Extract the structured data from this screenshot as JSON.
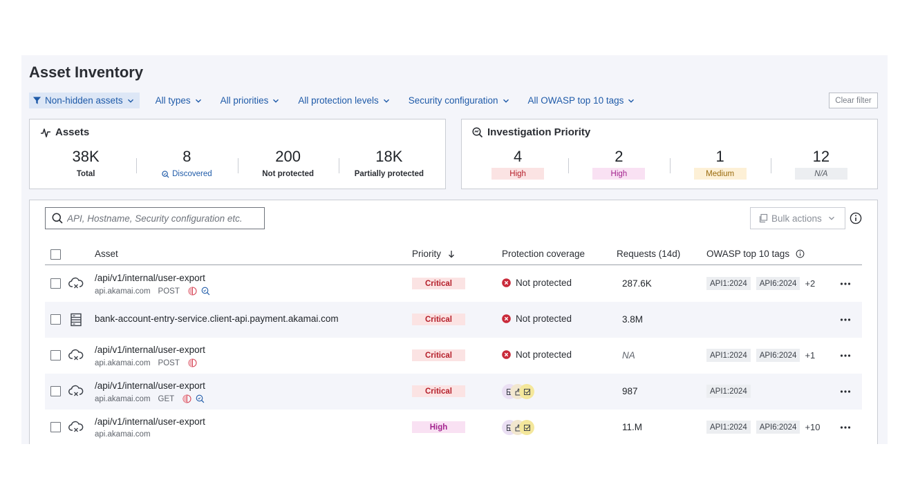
{
  "page": {
    "title": "Asset Inventory"
  },
  "filters": [
    {
      "label": "Non-hidden assets",
      "active": true
    },
    {
      "label": "All types"
    },
    {
      "label": "All priorities"
    },
    {
      "label": "All protection levels"
    },
    {
      "label": "Security configuration"
    },
    {
      "label": "All OWASP top 10 tags"
    }
  ],
  "clear_filter_label": "Clear filter",
  "assets_card": {
    "title": "Assets",
    "stats": [
      {
        "value": "38K",
        "label": "Total"
      },
      {
        "value": "8",
        "label": "Discovered"
      },
      {
        "value": "200",
        "label": "Not protected"
      },
      {
        "value": "18K",
        "label": "Partially protected"
      }
    ]
  },
  "investigation_card": {
    "title": "Investigation Priority",
    "stats": [
      {
        "value": "4",
        "label": "High"
      },
      {
        "value": "2",
        "label": "High"
      },
      {
        "value": "1",
        "label": "Medium"
      },
      {
        "value": "12",
        "label": "N/A"
      }
    ]
  },
  "search": {
    "placeholder": "API, Hostname, Security configuration etc."
  },
  "bulk_actions_label": "Bulk actions",
  "table": {
    "columns": {
      "asset": "Asset",
      "priority": "Priority",
      "coverage": "Protection coverage",
      "requests": "Requests (14d)",
      "owasp": "OWASP top 10 tags"
    },
    "rows": [
      {
        "type": "api",
        "name": "/api/v1/internal/user-export",
        "host": "api.akamai.com",
        "method": "POST",
        "priority": "Critical",
        "coverage": "Not protected",
        "requests": "287.6K",
        "tags": [
          "API1:2024",
          "API6:2024"
        ],
        "more": "+2"
      },
      {
        "type": "hostname",
        "name": "bank-account-entry-service.client-api.payment.akamai.com",
        "priority": "Critical",
        "coverage": "Not protected",
        "requests": "3.8M"
      },
      {
        "type": "api",
        "name": "/api/v1/internal/user-export",
        "host": "api.akamai.com",
        "method": "POST",
        "priority": "Critical",
        "coverage": "Not protected",
        "requests": "NA",
        "tags": [
          "API1:2024",
          "API6:2024"
        ],
        "more": "+1"
      },
      {
        "type": "api",
        "name": "/api/v1/internal/user-export",
        "host": "api.akamai.com",
        "method": "GET",
        "priority": "Critical",
        "requests": "987",
        "tags": [
          "API1:2024"
        ]
      },
      {
        "type": "api",
        "name": "/api/v1/internal/user-export",
        "host": "api.akamai.com",
        "priority": "High",
        "requests": "11.M",
        "tags": [
          "API1:2024",
          "API6:2024"
        ],
        "more": "+10"
      }
    ]
  },
  "colors": {
    "accent": "#1e5aa8",
    "critical": "#b5202b",
    "high": "#a3238e",
    "medium": "#9a6a0c",
    "panel_bg": "#f4f5fa"
  }
}
